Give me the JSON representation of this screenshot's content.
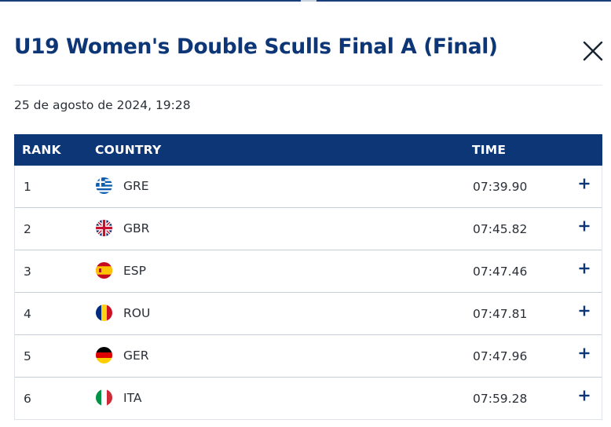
{
  "modal": {
    "title": "U19 Women's Double Sculls Final A (Final)",
    "date_time": "25 de agosto de 2024, 19:28",
    "close_icon": "close-icon"
  },
  "table": {
    "headers": {
      "rank": "RANK",
      "country": "COUNTRY",
      "time": "TIME"
    },
    "rows": [
      {
        "rank": "1",
        "country": "GRE",
        "time": "07:39.90",
        "flag_icon": "greece-flag-icon"
      },
      {
        "rank": "2",
        "country": "GBR",
        "time": "07:45.82",
        "flag_icon": "great-britain-flag-icon"
      },
      {
        "rank": "3",
        "country": "ESP",
        "time": "07:47.46",
        "flag_icon": "spain-flag-icon"
      },
      {
        "rank": "4",
        "country": "ROU",
        "time": "07:47.81",
        "flag_icon": "romania-flag-icon"
      },
      {
        "rank": "5",
        "country": "GER",
        "time": "07:47.96",
        "flag_icon": "germany-flag-icon"
      },
      {
        "rank": "6",
        "country": "ITA",
        "time": "07:59.28",
        "flag_icon": "italy-flag-icon"
      }
    ],
    "expand_icon": "plus-icon"
  },
  "colors": {
    "brand_navy": "#0d3677",
    "row_divider": "#c7ced7",
    "text": "#2a2f36"
  }
}
